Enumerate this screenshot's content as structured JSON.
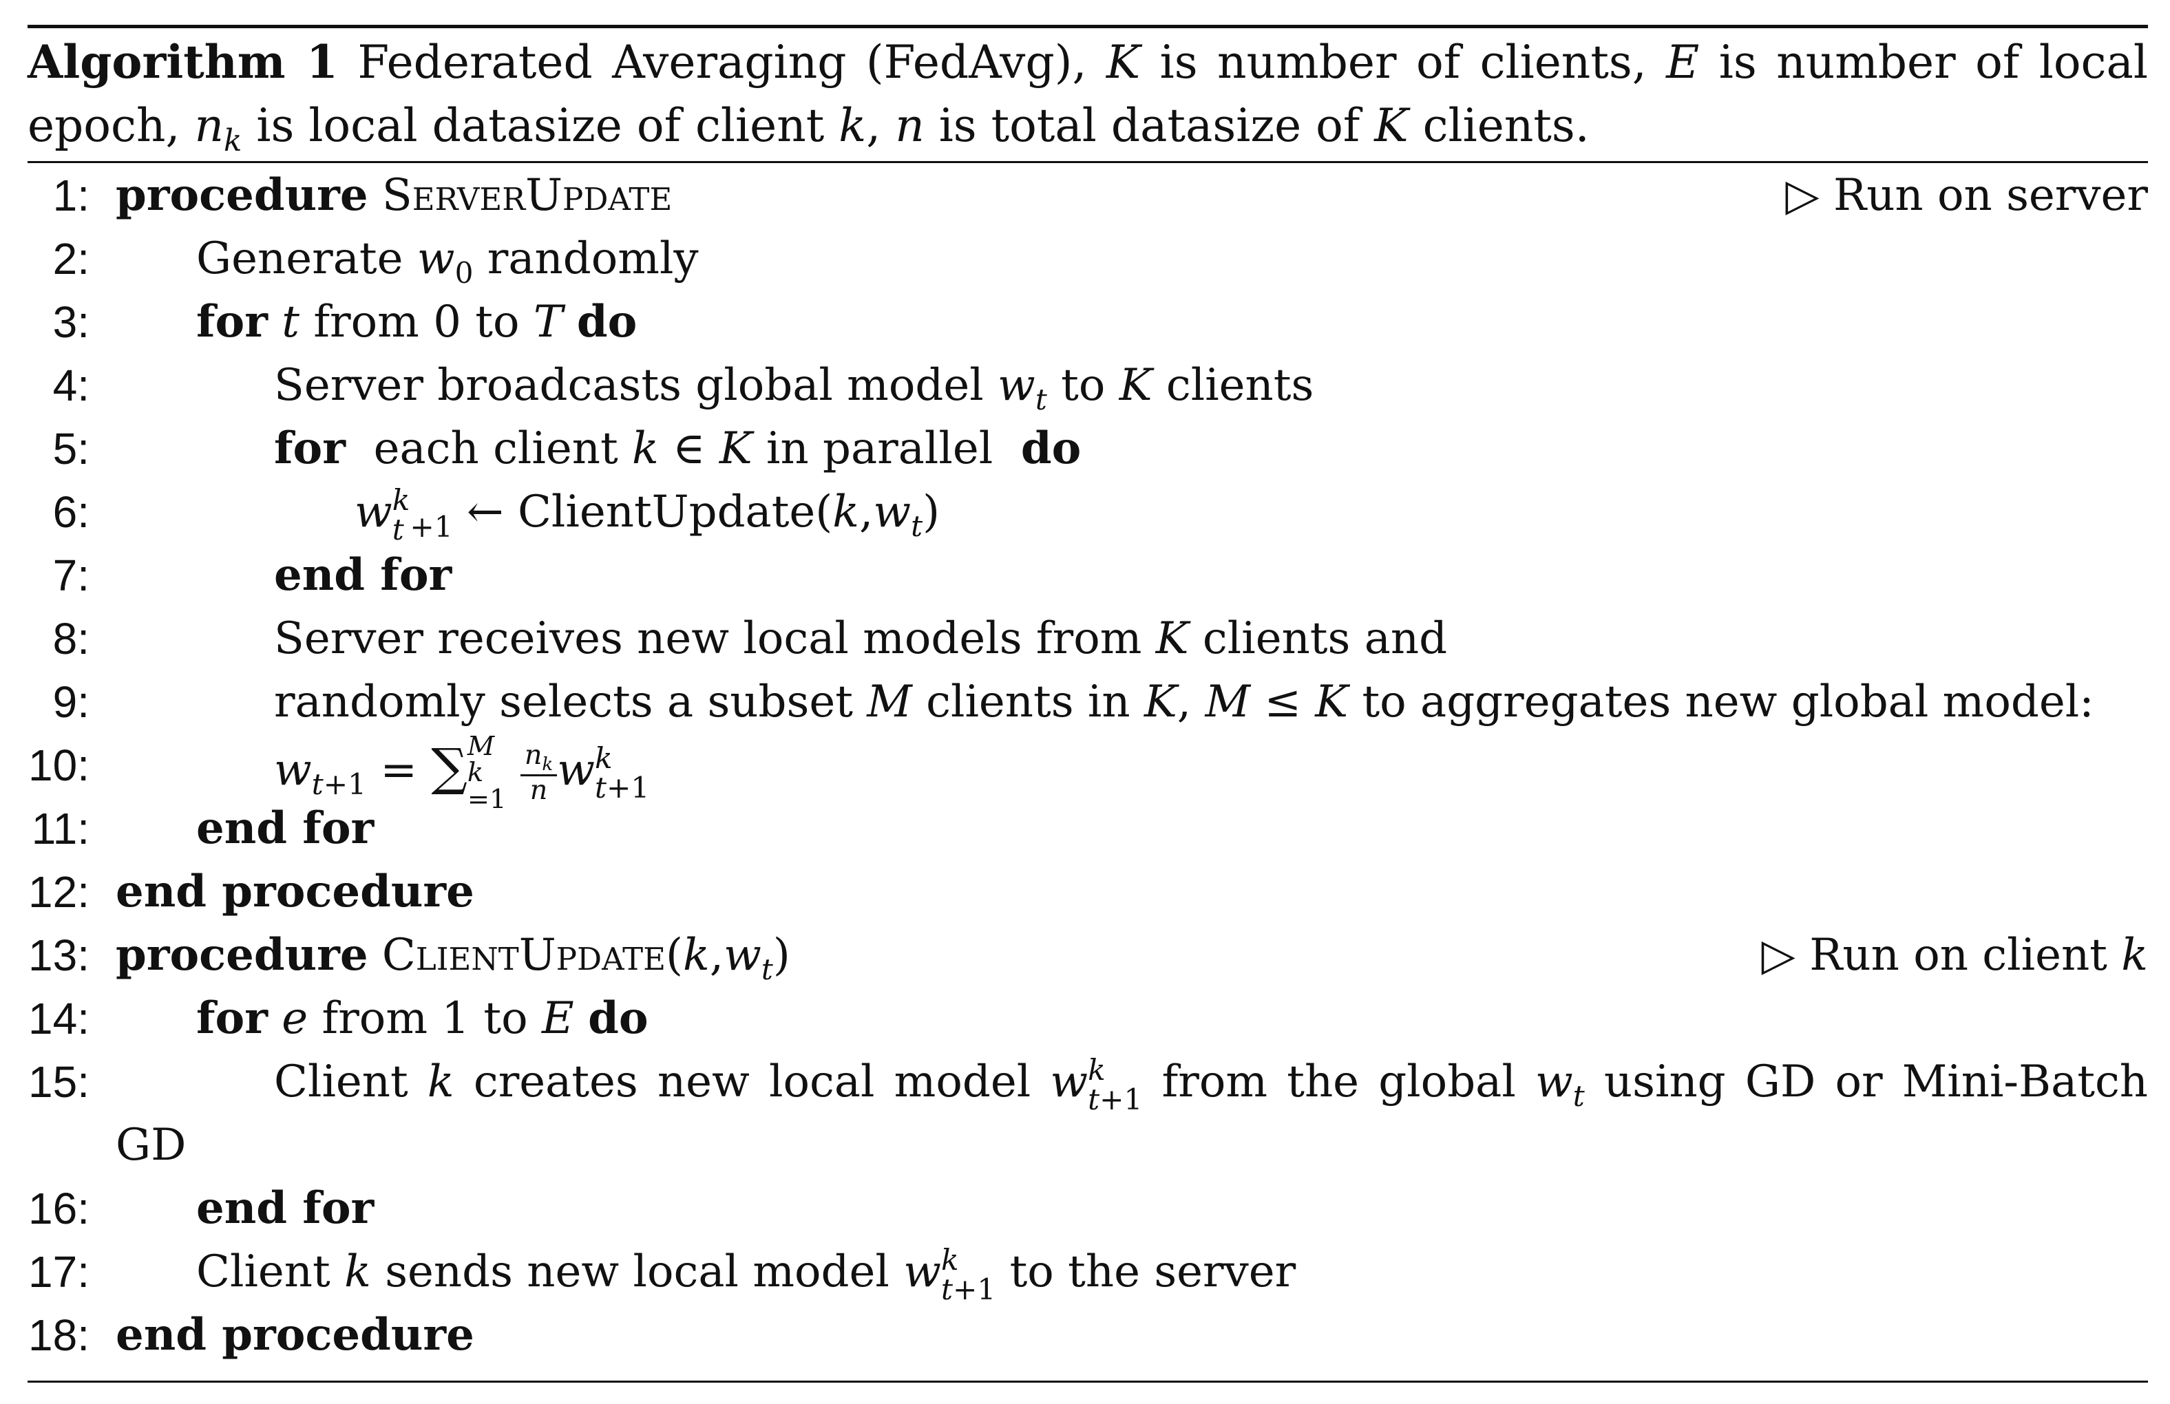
{
  "caption": {
    "label": "Algorithm 1",
    "text": "Federated Averaging (FedAvg), K is number of clients, E is number of local epoch, n_k is local datasize of client k, n is total datasize of K clients."
  },
  "lines": [
    {
      "n": "1:",
      "kw": "procedure",
      "name": "ServerUpdate",
      "comment": "▷ Run on server"
    },
    {
      "n": "2:",
      "text": "Generate w0 randomly"
    },
    {
      "n": "3:",
      "text": "for t from 0 to T do"
    },
    {
      "n": "4:",
      "text": "Server broadcasts global model wt to K clients"
    },
    {
      "n": "5:",
      "text": "for each client k ∈ K in parallel do"
    },
    {
      "n": "6:",
      "text": "w_{t+1}^k ← ClientUpdate(k,wt)"
    },
    {
      "n": "7:",
      "text": "end for"
    },
    {
      "n": "8:",
      "text": "Server receives new local models from K clients and"
    },
    {
      "n": "9:",
      "text": "randomly selects a subset M clients in K, M ≤ K to aggregates new global model:"
    },
    {
      "n": "10:",
      "text": "w_{t+1} = Σ_{k=1}^{M} n_k/n w_{t+1}^k"
    },
    {
      "n": "11:",
      "text": "end for"
    },
    {
      "n": "12:",
      "text": "end procedure"
    },
    {
      "n": "13:",
      "kw": "procedure",
      "name": "ClientUpdate",
      "args": "(k,wt)",
      "comment": "▷ Run on client k"
    },
    {
      "n": "14:",
      "text": "for e from 1 to E do"
    },
    {
      "n": "15:",
      "text": "Client k creates new local model w_{t+1}^k from the global wt using GD or Mini-Batch",
      "wrap": "GD"
    },
    {
      "n": "16:",
      "text": "end for"
    },
    {
      "n": "17:",
      "text": "Client k sends new local model w_{t+1}^k to the server"
    },
    {
      "n": "18:",
      "text": "end procedure"
    }
  ]
}
